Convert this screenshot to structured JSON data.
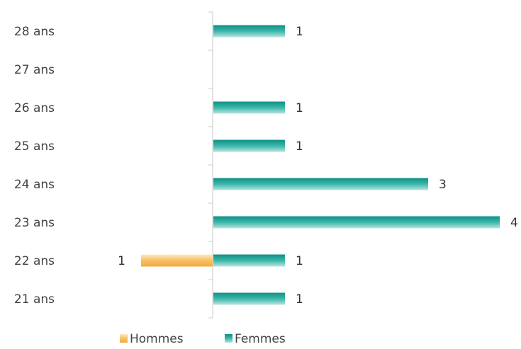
{
  "chart_data": {
    "type": "bar",
    "orientation": "horizontal",
    "diverging": true,
    "categories": [
      "28 ans",
      "27 ans",
      "26 ans",
      "25 ans",
      "24 ans",
      "23 ans",
      "22 ans",
      "21 ans"
    ],
    "series": [
      {
        "name": "Hommes",
        "values": [
          0,
          0,
          0,
          0,
          0,
          0,
          1,
          0
        ],
        "color": "#f6b84e",
        "side": "left"
      },
      {
        "name": "Femmes",
        "values": [
          1,
          0,
          1,
          1,
          3,
          4,
          1,
          1
        ],
        "color": "#1fa79a",
        "side": "right"
      }
    ],
    "title": "",
    "xlabel": "",
    "ylabel": "",
    "xlim": [
      -1,
      4
    ],
    "legend_position": "bottom",
    "grid": false,
    "data_labels": true
  }
}
